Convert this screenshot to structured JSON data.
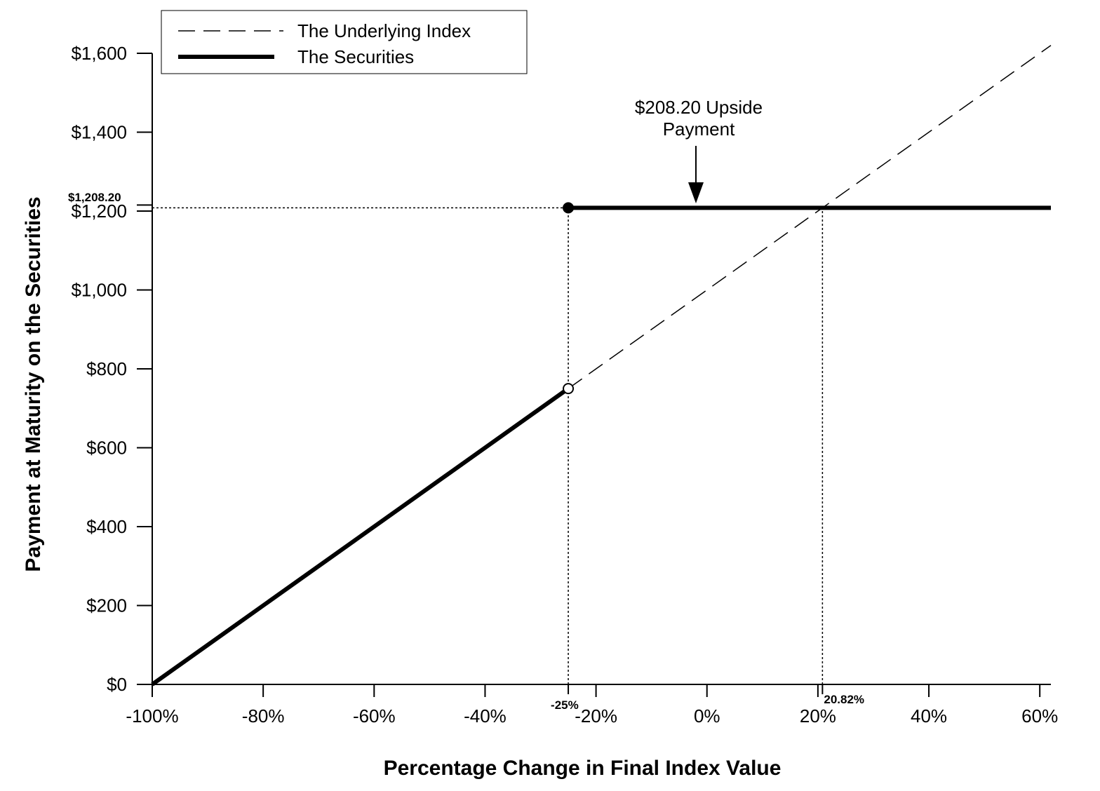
{
  "chart_data": {
    "type": "line",
    "xlabel": "Percentage Change in Final Index Value",
    "ylabel": "Payment at Maturity on the Securities",
    "xlim": [
      -100,
      62
    ],
    "ylim": [
      0,
      1600
    ],
    "x_ticks": [
      {
        "value": -100,
        "label": "-100%"
      },
      {
        "value": -80,
        "label": "-80%"
      },
      {
        "value": -60,
        "label": "-60%"
      },
      {
        "value": -40,
        "label": "-40%"
      },
      {
        "value": -20,
        "label": "-20%"
      },
      {
        "value": 0,
        "label": "0%"
      },
      {
        "value": 20,
        "label": "20%"
      },
      {
        "value": 40,
        "label": "40%"
      },
      {
        "value": 60,
        "label": "60%"
      }
    ],
    "y_ticks": [
      {
        "value": 0,
        "label": "$0"
      },
      {
        "value": 200,
        "label": "$200"
      },
      {
        "value": 400,
        "label": "$400"
      },
      {
        "value": 600,
        "label": "$600"
      },
      {
        "value": 800,
        "label": "$800"
      },
      {
        "value": 1000,
        "label": "$1,000"
      },
      {
        "value": 1200,
        "label": "$1,200"
      },
      {
        "value": 1400,
        "label": "$1,400"
      },
      {
        "value": 1600,
        "label": "$1,600"
      }
    ],
    "series": [
      {
        "name": "The Underlying Index",
        "style": "dashed",
        "x": [
          -25,
          62
        ],
        "y": [
          750,
          1620
        ]
      },
      {
        "name": "The Securities",
        "style": "solid-thick",
        "segments": [
          {
            "x": [
              -100,
              -25
            ],
            "y": [
              0,
              750
            ]
          },
          {
            "x": [
              -25,
              62
            ],
            "y": [
              1208.2,
              1208.2
            ]
          }
        ]
      }
    ],
    "markers": [
      {
        "x": -25,
        "y": 1208.2,
        "fill": "filled"
      },
      {
        "x": -25,
        "y": 750,
        "fill": "open"
      }
    ],
    "reference_lines": [
      {
        "kind": "horizontal",
        "y": 1208.2,
        "x_from": -100,
        "x_to": -25
      },
      {
        "kind": "vertical",
        "x": -25,
        "y_from": 0,
        "y_to": 1208.2
      },
      {
        "kind": "vertical",
        "x": 20.82,
        "y_from": 0,
        "y_to": 1208.2
      }
    ],
    "special_labels": {
      "cap_value": "$1,208.20",
      "barrier_pct": "-25%",
      "breakeven_pct": "20.82%"
    },
    "annotation": {
      "line1": "$208.20 Upside",
      "line2": "Payment",
      "x": 0,
      "y": 1208.2
    },
    "legend": {
      "placement": "top-left",
      "items": [
        "The Underlying Index",
        "The Securities"
      ]
    },
    "grid": false
  }
}
